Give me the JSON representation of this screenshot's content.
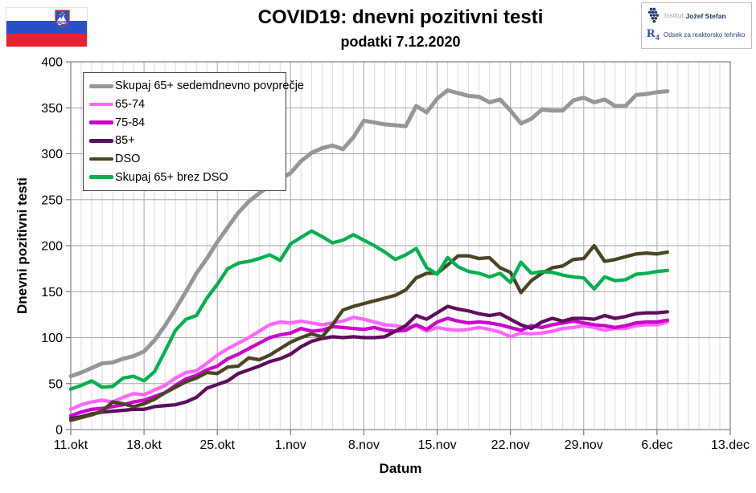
{
  "header": {
    "logo": {
      "line1_light": "Institut",
      "line1_bold": "Jožef Stefan",
      "line2_mark": "R",
      "line2_mark_sub": "4",
      "line2_text": "Odsek za reaktorsko tehniko"
    }
  },
  "chart_data": {
    "type": "line",
    "title": "COVID19: dnevni pozitivni testi",
    "subtitle": "podatki 7.12.2020",
    "xlabel": "Datum",
    "ylabel": "Dnevni pozitivni testi",
    "ylim": [
      0,
      400
    ],
    "y_ticks": [
      0,
      50,
      100,
      150,
      200,
      250,
      300,
      350,
      400
    ],
    "x_tick_labels": [
      "11.okt",
      "18.okt",
      "25.okt",
      "1.nov",
      "8.nov",
      "15.nov",
      "22.nov",
      "29.nov",
      "6.dec",
      "13.dec"
    ],
    "x_tick_days": [
      0,
      7,
      14,
      21,
      28,
      35,
      42,
      49,
      56,
      63
    ],
    "x_total_days": 63,
    "x_start_date": "11.okt",
    "data_end_date": "7.dec",
    "grid": "on",
    "legend_position": "top-left-inside",
    "series": [
      {
        "name": "Skupaj 65+ sedemdnevno povprečje",
        "color": "#969696",
        "width": 5,
        "values": [
          58,
          62,
          67,
          72,
          73,
          77,
          80,
          85,
          97,
          113,
          131,
          150,
          170,
          186,
          204,
          220,
          236,
          248,
          257,
          265,
          272,
          279,
          292,
          301,
          306,
          309,
          305,
          318,
          336,
          334,
          332,
          331,
          330,
          352,
          345,
          360,
          369,
          366,
          363,
          362,
          356,
          359,
          347,
          333,
          338,
          348,
          347,
          347,
          358,
          361,
          356,
          359,
          352,
          352,
          364,
          365,
          367,
          368
        ]
      },
      {
        "name": "65-74",
        "color": "#FF66FF",
        "width": 4.3,
        "values": [
          22,
          27,
          30,
          32,
          30,
          35,
          39,
          38,
          43,
          48,
          56,
          62,
          64,
          72,
          81,
          88,
          94,
          100,
          107,
          114,
          117,
          116,
          118,
          116,
          114,
          116,
          118,
          122,
          120,
          117,
          114,
          113,
          111,
          113,
          107,
          111,
          109,
          108,
          109,
          111,
          109,
          106,
          101,
          105,
          104,
          105,
          107,
          110,
          111,
          113,
          111,
          108,
          110,
          110,
          113,
          114,
          114,
          117
        ]
      },
      {
        "name": "75-84",
        "color": "#CC00CC",
        "width": 4.3,
        "values": [
          15,
          19,
          22,
          23,
          25,
          27,
          30,
          32,
          36,
          40,
          48,
          55,
          59,
          65,
          69,
          77,
          82,
          88,
          94,
          100,
          103,
          105,
          110,
          107,
          108,
          112,
          111,
          110,
          109,
          111,
          108,
          107,
          108,
          114,
          109,
          117,
          121,
          118,
          116,
          117,
          116,
          114,
          111,
          108,
          113,
          111,
          114,
          116,
          118,
          116,
          114,
          113,
          111,
          113,
          116,
          117,
          117,
          119
        ]
      },
      {
        "name": "85+",
        "color": "#5C0E5C",
        "width": 4.3,
        "values": [
          12,
          14,
          17,
          19,
          20,
          21,
          22,
          22,
          25,
          26,
          27,
          30,
          35,
          45,
          49,
          53,
          61,
          65,
          69,
          74,
          77,
          82,
          90,
          96,
          99,
          101,
          100,
          101,
          100,
          100,
          101,
          107,
          113,
          124,
          120,
          127,
          134,
          131,
          129,
          126,
          124,
          126,
          120,
          114,
          110,
          117,
          121,
          118,
          121,
          121,
          120,
          124,
          121,
          123,
          126,
          127,
          127,
          128
        ]
      },
      {
        "name": "DSO",
        "color": "#4A4422",
        "width": 4.3,
        "values": [
          10,
          13,
          16,
          20,
          30,
          28,
          25,
          28,
          33,
          40,
          46,
          52,
          56,
          62,
          61,
          68,
          69,
          78,
          76,
          81,
          88,
          95,
          100,
          104,
          101,
          114,
          130,
          134,
          137,
          140,
          143,
          146,
          152,
          165,
          170,
          170,
          179,
          189,
          189,
          186,
          187,
          176,
          171,
          149,
          162,
          170,
          176,
          178,
          185,
          186,
          200,
          183,
          185,
          188,
          191,
          192,
          191,
          193
        ]
      },
      {
        "name": "Skupaj 65+ brez DSO",
        "color": "#00B050",
        "width": 4.3,
        "values": [
          44,
          48,
          53,
          46,
          47,
          56,
          58,
          53,
          63,
          85,
          108,
          120,
          124,
          143,
          158,
          175,
          181,
          183,
          186,
          190,
          184,
          202,
          209,
          216,
          210,
          203,
          206,
          212,
          206,
          200,
          193,
          185,
          190,
          197,
          176,
          169,
          187,
          177,
          172,
          170,
          166,
          170,
          160,
          182,
          170,
          172,
          171,
          168,
          166,
          165,
          153,
          166,
          162,
          163,
          169,
          170,
          172,
          173
        ]
      }
    ]
  }
}
